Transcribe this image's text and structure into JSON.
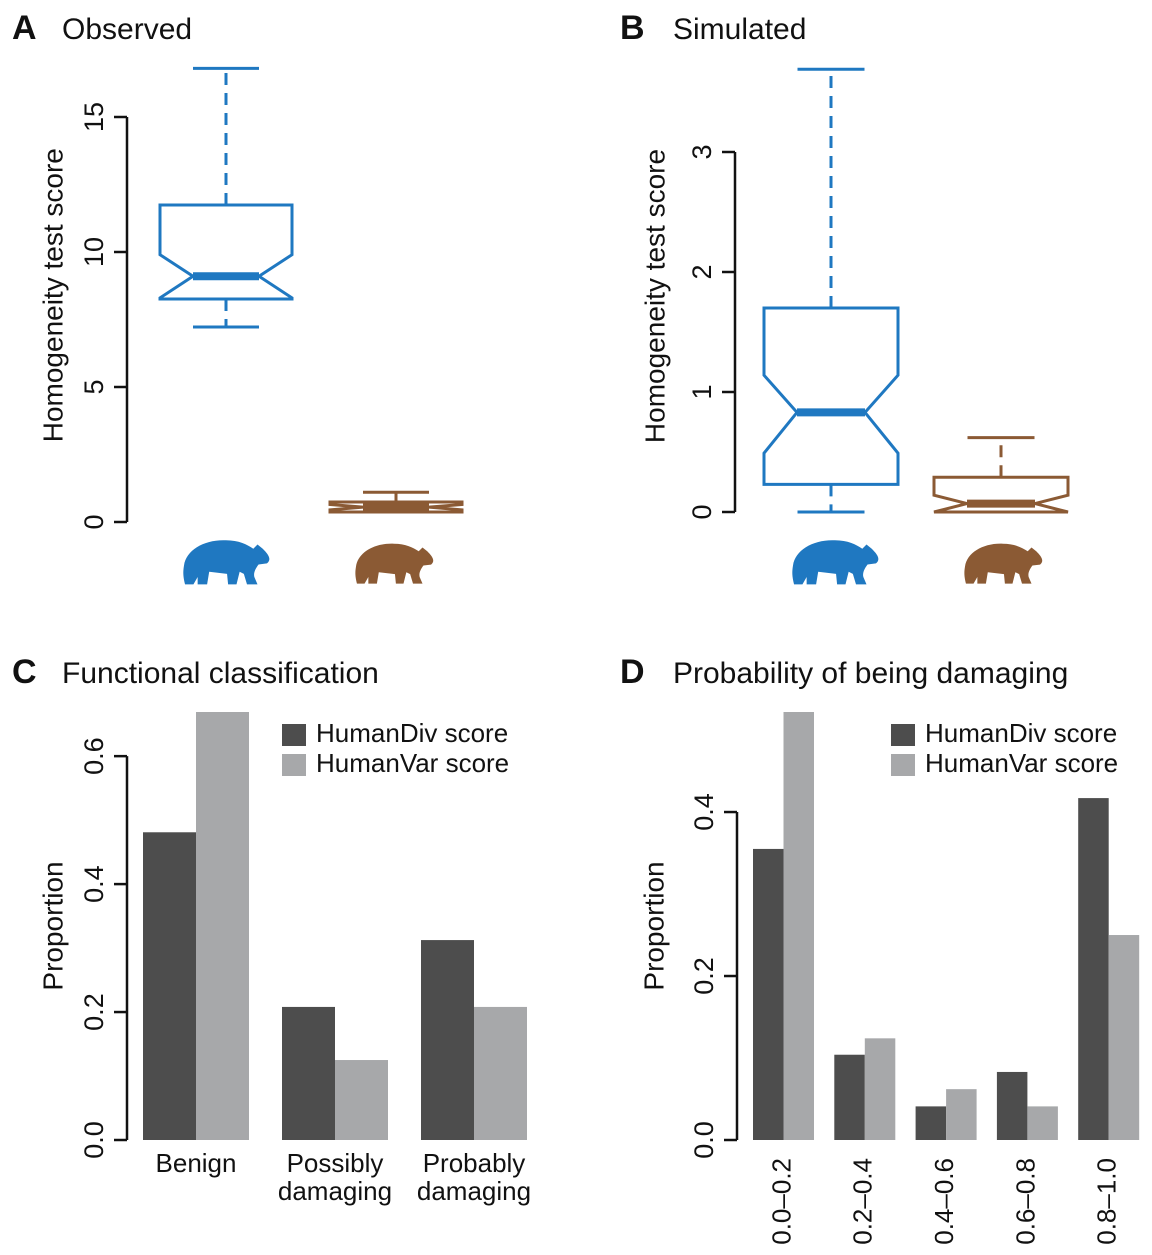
{
  "chart_data": [
    {
      "type": "box",
      "panel_label": "A",
      "title": "Observed",
      "y_label": "Homogeneity test score",
      "ylim": [
        -0.5,
        17.3
      ],
      "yticks": [
        0,
        5,
        10,
        15
      ],
      "notch": true,
      "boxes": [
        {
          "color": "#1f78c1",
          "whislo": 7.22,
          "q1": 8.26,
          "notch_lo": 8.3,
          "med": 9.1,
          "notch_hi": 9.9,
          "q3": 11.74,
          "whishi": 16.8
        },
        {
          "color": "#8b5a34",
          "whislo": 0.37,
          "q1": 0.37,
          "notch_lo": 0.45,
          "med": 0.55,
          "notch_hi": 0.65,
          "q3": 0.74,
          "whishi": 1.1
        }
      ]
    },
    {
      "type": "box",
      "panel_label": "B",
      "title": "Simulated",
      "y_label": "Homogeneity test score",
      "ylim": [
        -0.2,
        3.8
      ],
      "yticks": [
        0,
        1,
        2,
        3
      ],
      "notch": true,
      "boxes": [
        {
          "color": "#1f78c1",
          "whislo": 0,
          "q1": 0.23,
          "notch_lo": 0.49,
          "med": 0.83,
          "notch_hi": 1.14,
          "q3": 1.7,
          "whishi": 3.69
        },
        {
          "color": "#8b5a34",
          "whislo": 0,
          "q1": 0,
          "notch_lo": 0,
          "med": 0.07,
          "notch_hi": 0.14,
          "q3": 0.29,
          "whishi": 0.62
        }
      ]
    },
    {
      "type": "bar",
      "panel_label": "C",
      "title": "Functional classification",
      "y_label": "Proportion",
      "categories": [
        "Benign",
        "Possibly damaging",
        "Probably damaging"
      ],
      "series": [
        {
          "name": "HumanDiv score",
          "color": "#4d4d4d",
          "values": [
            0.481,
            0.208,
            0.3125
          ]
        },
        {
          "name": "HumanVar score",
          "color": "#a7a8aa",
          "values": [
            0.669,
            0.125,
            0.208
          ]
        }
      ],
      "ylim": [
        0,
        0.669
      ],
      "yticks": [
        {
          "value": 0,
          "label": "0.0"
        },
        0.2,
        0.4,
        0.6
      ],
      "legend": "top-right",
      "x_label_rotation": 0
    },
    {
      "type": "bar",
      "panel_label": "D",
      "title": "Probability of being damaging",
      "y_label": "Proportion",
      "categories": [
        "0.0–0.2",
        "0.2–0.4",
        "0.4–0.6",
        "0.6–0.8",
        "0.8–1.0"
      ],
      "series": [
        {
          "name": "HumanDiv score",
          "color": "#4d4d4d",
          "values": [
            0.355,
            0.104,
            0.041,
            0.083,
            0.417
          ]
        },
        {
          "name": "HumanVar score",
          "color": "#a7a8aa",
          "values": [
            0.522,
            0.124,
            0.062,
            0.041,
            0.25
          ]
        }
      ],
      "ylim": [
        0,
        0.522
      ],
      "yticks": [
        {
          "value": 0,
          "label": "0.0"
        },
        0.2,
        0.4
      ],
      "legend": "top-right",
      "x_label_rotation": -90
    }
  ]
}
